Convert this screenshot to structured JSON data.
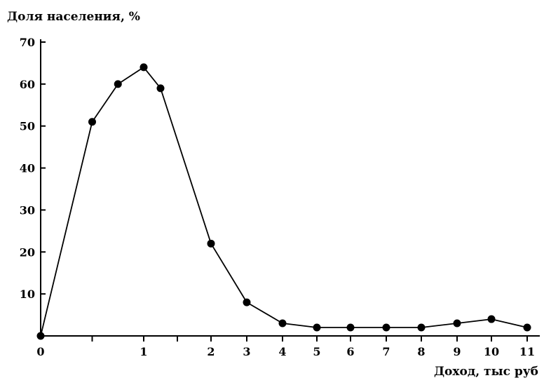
{
  "chart_data": {
    "type": "line",
    "title": "",
    "ylabel": "Доля населения, %",
    "xlabel": "Доход, тыс руб",
    "ylim": [
      0,
      70
    ],
    "xlim": [
      0,
      11
    ],
    "y_ticks": [
      10,
      20,
      30,
      40,
      50,
      60,
      70
    ],
    "x_ticks": [
      0,
      1,
      2,
      3,
      4,
      5,
      6,
      7,
      8,
      9,
      10,
      11
    ],
    "x_minor_ticks": [
      0.5,
      1.5
    ],
    "grid": false,
    "legend": "none",
    "series": [
      {
        "x": [
          0,
          0.5,
          0.75,
          1,
          1.25,
          2,
          3,
          4,
          5,
          6,
          7,
          8,
          9,
          10,
          11
        ],
        "y": [
          0,
          51,
          60,
          64,
          59,
          22,
          8,
          3,
          2,
          2,
          2,
          2,
          3,
          4,
          2
        ]
      }
    ]
  }
}
